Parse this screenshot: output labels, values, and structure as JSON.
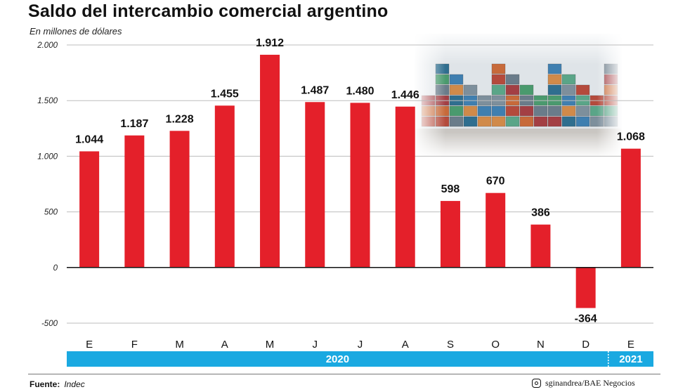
{
  "title": "Saldo del intercambio comercial argentino",
  "subtitle": "En millones de dólares",
  "footer": {
    "source_label": "Fuente:",
    "source_value": "Indec",
    "credit": "sginandrea/BAE Negocios",
    "credit_icon": "instagram-icon"
  },
  "colors": {
    "bar": "#e4202a",
    "band": "#1aa9e1",
    "grid": "#bdbdbd",
    "axis": "#111111"
  },
  "chart_data": {
    "type": "bar",
    "title": "Saldo del intercambio comercial argentino",
    "ylabel": "En millones de dólares",
    "categories": [
      "E",
      "F",
      "M",
      "A",
      "M",
      "J",
      "J",
      "A",
      "S",
      "O",
      "N",
      "D",
      "E"
    ],
    "values": [
      1044,
      1187,
      1228,
      1455,
      1912,
      1487,
      1480,
      1446,
      598,
      670,
      386,
      -364,
      1068
    ],
    "value_labels": [
      "1.044",
      "1.187",
      "1.228",
      "1.455",
      "1.912",
      "1.487",
      "1.480",
      "1.446",
      "598",
      "670",
      "386",
      "-364",
      "1.068"
    ],
    "ylim": [
      -500,
      2000
    ],
    "yticks": [
      2000,
      1500,
      1000,
      500,
      0,
      -500
    ],
    "ytick_labels": [
      "2.000",
      "1.500",
      "1.000",
      "500",
      "0",
      "-500"
    ],
    "year_groups": [
      {
        "label": "2020",
        "months": 12
      },
      {
        "label": "2021",
        "months": 1
      }
    ],
    "grid": true
  }
}
